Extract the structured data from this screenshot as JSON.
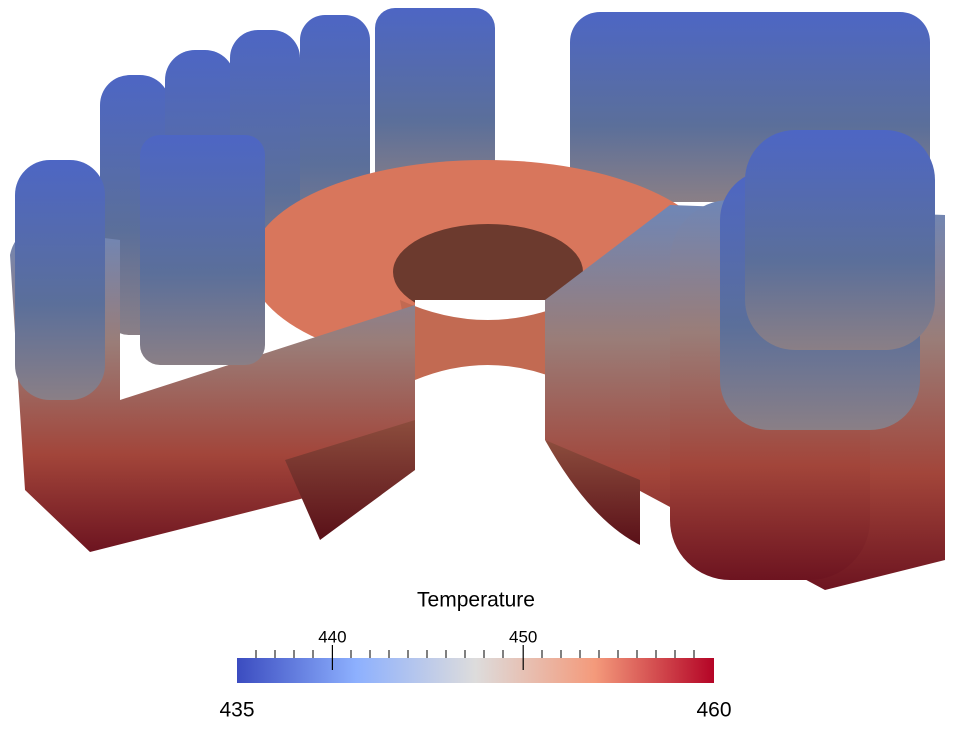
{
  "colorbar": {
    "title": "Temperature",
    "range": [
      435,
      460
    ],
    "ticks": [
      440,
      450
    ],
    "colors": [
      "#3b4cc0",
      "#8db0fe",
      "#dddcdc",
      "#f49a7b",
      "#b40426"
    ]
  }
}
